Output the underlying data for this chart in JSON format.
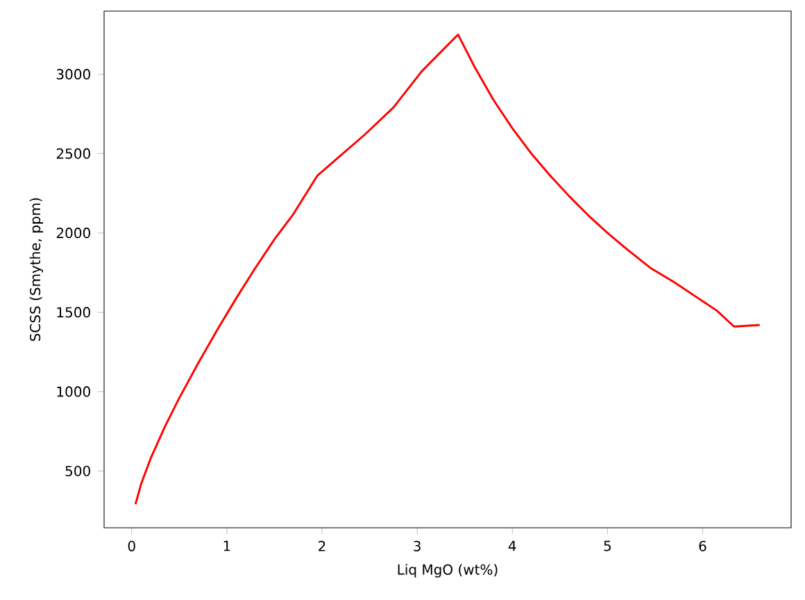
{
  "chart_data": {
    "type": "line",
    "xlabel": "Liq MgO (wt%)",
    "ylabel": "SCSS (Smythe, ppm)",
    "xlim": [
      -0.29,
      6.93
    ],
    "ylim": [
      142,
      3398
    ],
    "xticks": [
      0,
      1,
      2,
      3,
      4,
      5,
      6
    ],
    "yticks": [
      500,
      1000,
      1500,
      2000,
      2500,
      3000
    ],
    "grid": false,
    "marker": "none",
    "line_style": "solid",
    "series": [
      {
        "color": "#ff0000",
        "x": [
          0.04,
          0.1,
          0.2,
          0.35,
          0.5,
          0.7,
          0.9,
          1.1,
          1.3,
          1.5,
          1.7,
          1.95,
          2.2,
          2.45,
          2.75,
          3.05,
          3.43,
          3.6,
          3.8,
          4.0,
          4.2,
          4.4,
          4.6,
          4.8,
          5.0,
          5.2,
          5.45,
          5.7,
          5.95,
          6.15,
          6.33,
          6.6
        ],
        "values": [
          290,
          420,
          580,
          780,
          960,
          1180,
          1390,
          1590,
          1780,
          1960,
          2120,
          2360,
          2490,
          2620,
          2790,
          3020,
          3250,
          3050,
          2840,
          2660,
          2500,
          2360,
          2230,
          2110,
          2000,
          1900,
          1780,
          1690,
          1590,
          1510,
          1410,
          1420
        ]
      }
    ]
  }
}
